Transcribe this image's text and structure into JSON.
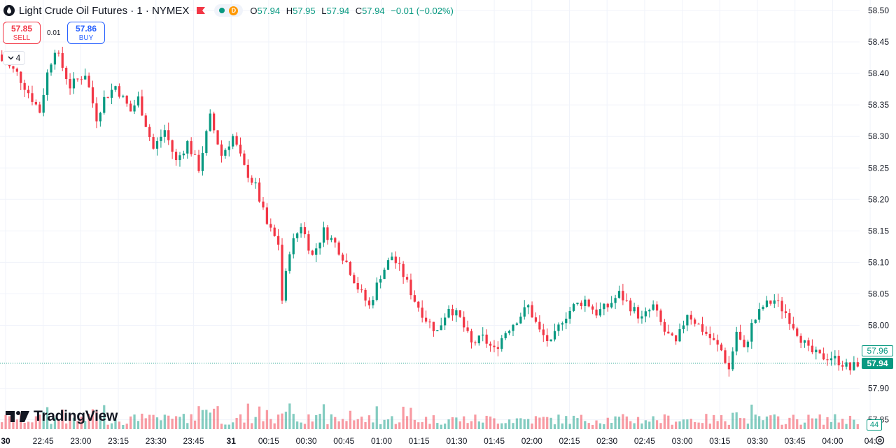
{
  "header": {
    "title": "Light Crude Oil Futures · 1 · NYMEX",
    "status_letter": "D",
    "ohlc": [
      {
        "key": "O",
        "value": "57.94"
      },
      {
        "key": "H",
        "value": "57.95"
      },
      {
        "key": "L",
        "value": "57.94"
      },
      {
        "key": "C",
        "value": "57.94"
      }
    ],
    "change": "−0.01 (−0.02%)"
  },
  "trade": {
    "sell_price": "57.85",
    "sell_label": "SELL",
    "buy_price": "57.86",
    "buy_label": "BUY",
    "spread": "0.01"
  },
  "indicators_collapsed_count": "4",
  "brand": "TradingView",
  "labels": {
    "last_price": "57.94",
    "bid_line": "57.96",
    "volume": "44"
  },
  "colors": {
    "up": "#089981",
    "down": "#f23645",
    "grid": "#f0f3fa",
    "accent": "#2962ff"
  },
  "chart_data": {
    "type": "candlestick",
    "symbol": "Light Crude Oil Futures",
    "interval": "1",
    "exchange": "NYMEX",
    "ylim": [
      57.85,
      58.52
    ],
    "y_ticks": [
      "58.50",
      "58.45",
      "58.40",
      "58.35",
      "58.30",
      "58.25",
      "58.20",
      "58.15",
      "58.10",
      "58.05",
      "58.00",
      "57.90",
      "57.85"
    ],
    "x_ticks": [
      "30",
      "22:45",
      "23:00",
      "23:15",
      "23:30",
      "23:45",
      "31",
      "00:15",
      "00:30",
      "00:45",
      "01:00",
      "01:15",
      "01:30",
      "01:45",
      "02:00",
      "02:15",
      "02:30",
      "02:45",
      "03:00",
      "03:15",
      "03:30",
      "03:45",
      "04:00",
      "04:"
    ],
    "close_path": [
      [
        0,
        58.42
      ],
      [
        4,
        58.4
      ],
      [
        8,
        58.36
      ],
      [
        10,
        58.34
      ],
      [
        12,
        58.4
      ],
      [
        14,
        58.44
      ],
      [
        18,
        58.38
      ],
      [
        22,
        58.4
      ],
      [
        25,
        58.33
      ],
      [
        27,
        58.36
      ],
      [
        30,
        58.38
      ],
      [
        34,
        58.34
      ],
      [
        36,
        58.36
      ],
      [
        40,
        58.28
      ],
      [
        43,
        58.31
      ],
      [
        46,
        58.26
      ],
      [
        49,
        58.29
      ],
      [
        52,
        58.25
      ],
      [
        55,
        58.33
      ],
      [
        58,
        58.27
      ],
      [
        61,
        58.3
      ],
      [
        64,
        58.25
      ],
      [
        67,
        58.22
      ],
      [
        70,
        58.16
      ],
      [
        73,
        58.13
      ],
      [
        74,
        58.04
      ],
      [
        76,
        58.12
      ],
      [
        79,
        58.16
      ],
      [
        82,
        58.11
      ],
      [
        85,
        58.15
      ],
      [
        88,
        58.13
      ],
      [
        91,
        58.1
      ],
      [
        94,
        58.06
      ],
      [
        97,
        58.03
      ],
      [
        100,
        58.08
      ],
      [
        103,
        58.11
      ],
      [
        106,
        58.08
      ],
      [
        109,
        58.04
      ],
      [
        112,
        58.01
      ],
      [
        115,
        57.99
      ],
      [
        118,
        58.03
      ],
      [
        121,
        58.01
      ],
      [
        124,
        57.97
      ],
      [
        127,
        57.98
      ],
      [
        130,
        57.96
      ],
      [
        133,
        57.99
      ],
      [
        136,
        58.01
      ],
      [
        139,
        58.03
      ],
      [
        142,
        57.99
      ],
      [
        145,
        57.97
      ],
      [
        148,
        58.01
      ],
      [
        151,
        58.03
      ],
      [
        154,
        58.04
      ],
      [
        157,
        58.02
      ],
      [
        160,
        58.03
      ],
      [
        163,
        58.05
      ],
      [
        166,
        58.03
      ],
      [
        169,
        58.01
      ],
      [
        172,
        58.03
      ],
      [
        175,
        57.99
      ],
      [
        178,
        57.97
      ],
      [
        181,
        58.02
      ],
      [
        184,
        58.0
      ],
      [
        187,
        57.98
      ],
      [
        190,
        57.96
      ],
      [
        192,
        57.93
      ],
      [
        194,
        57.99
      ],
      [
        196,
        57.96
      ],
      [
        198,
        58.0
      ],
      [
        201,
        58.03
      ],
      [
        204,
        58.04
      ],
      [
        207,
        58.02
      ],
      [
        210,
        57.99
      ],
      [
        213,
        57.96
      ],
      [
        216,
        57.95
      ],
      [
        219,
        57.95
      ],
      [
        222,
        57.94
      ],
      [
        224,
        57.93
      ],
      [
        226,
        57.94
      ]
    ],
    "volume_axis_value": "44"
  }
}
